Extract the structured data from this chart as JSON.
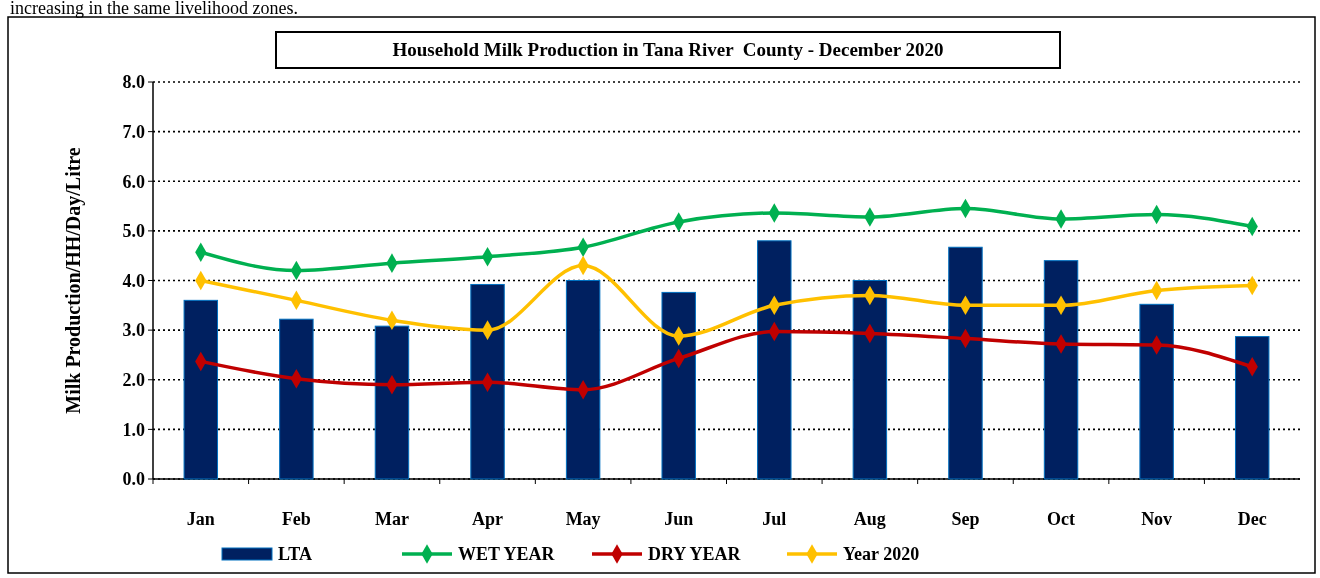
{
  "chart_data": {
    "type": "bar",
    "title": "Household Milk Production in Tana River  County - December 2020",
    "ylabel": "Milk Production/HH/Day/Litre",
    "annotations": [
      "increasing in the same livelihood zones."
    ],
    "categories": [
      "Jan",
      "Feb",
      "Mar",
      "Apr",
      "May",
      "Jun",
      "Jul",
      "Aug",
      "Sep",
      "Oct",
      "Nov",
      "Dec"
    ],
    "series": [
      {
        "name": "LTA",
        "color": "#002060",
        "values": [
          3.6,
          3.22,
          3.08,
          3.92,
          4.0,
          3.76,
          4.8,
          4.0,
          4.67,
          4.4,
          3.52,
          2.87
        ]
      },
      {
        "name": "WET YEAR",
        "type": "line",
        "color": "#00b050",
        "values": [
          4.57,
          4.2,
          4.35,
          4.48,
          4.67,
          5.18,
          5.36,
          5.28,
          5.45,
          5.24,
          5.33,
          5.09
        ]
      },
      {
        "name": "DRY YEAR",
        "type": "line",
        "color": "#c00000",
        "values": [
          2.37,
          2.02,
          1.9,
          1.95,
          1.8,
          2.43,
          2.97,
          2.93,
          2.83,
          2.72,
          2.7,
          2.26
        ]
      },
      {
        "name": "Year 2020",
        "type": "line",
        "color": "#ffc000",
        "values": [
          4.0,
          3.6,
          3.2,
          3.0,
          4.3,
          2.88,
          3.5,
          3.7,
          3.5,
          3.5,
          3.8,
          3.9
        ]
      }
    ],
    "ylim": [
      0,
      8
    ],
    "yticks": [
      {
        "value": 0,
        "label": "0.0"
      },
      {
        "value": 1,
        "label": "1.0"
      },
      {
        "value": 2,
        "label": "2.0"
      },
      {
        "value": 3,
        "label": "3.0"
      },
      {
        "value": 4,
        "label": "4.0"
      },
      {
        "value": 5,
        "label": "5.0"
      },
      {
        "value": 6,
        "label": "6.0"
      },
      {
        "value": 7,
        "label": "7.0"
      },
      {
        "value": 8,
        "label": "8.0"
      }
    ],
    "grid": "y",
    "legend": "bottom",
    "marker": "diamond",
    "line_style": "solid"
  }
}
